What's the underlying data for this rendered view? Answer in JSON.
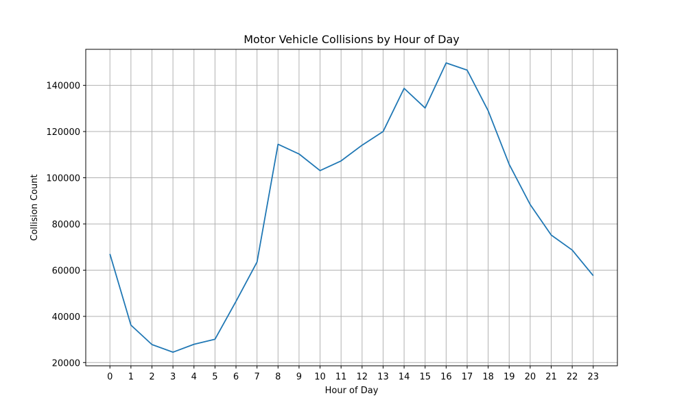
{
  "chart_data": {
    "type": "line",
    "title": "Motor Vehicle Collisions by Hour of Day",
    "xlabel": "Hour of Day",
    "ylabel": "Collision Count",
    "x": [
      0,
      1,
      2,
      3,
      4,
      5,
      6,
      7,
      8,
      9,
      10,
      11,
      12,
      13,
      14,
      15,
      16,
      17,
      18,
      19,
      20,
      21,
      22,
      23
    ],
    "series": [
      {
        "values": [
          67000,
          36200,
          27800,
          24500,
          27900,
          30100,
          46500,
          63500,
          114500,
          110300,
          103100,
          107300,
          114100,
          120000,
          138700,
          130200,
          149700,
          146600,
          129000,
          105800,
          88400,
          75200,
          68700,
          57600
        ],
        "color": "#1f77b4"
      }
    ],
    "xlim": [
      -1.15,
      24.15
    ],
    "ylim": [
      18600,
      155600
    ],
    "y_ticks": [
      20000,
      40000,
      60000,
      80000,
      100000,
      120000,
      140000
    ],
    "y_tick_labels": [
      "20000",
      "40000",
      "60000",
      "80000",
      "100000",
      "120000",
      "140000"
    ],
    "x_tick_labels": [
      "0",
      "1",
      "2",
      "3",
      "4",
      "5",
      "6",
      "7",
      "8",
      "9",
      "10",
      "11",
      "12",
      "13",
      "14",
      "15",
      "16",
      "17",
      "18",
      "19",
      "20",
      "21",
      "22",
      "23"
    ],
    "grid": true,
    "grid_color": "#b0b0b0"
  }
}
